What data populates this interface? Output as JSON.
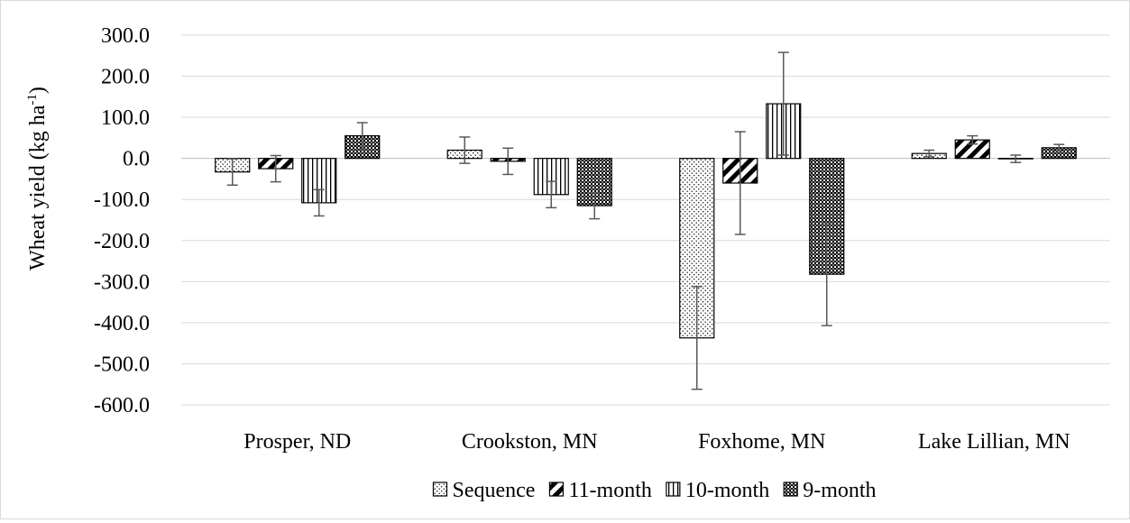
{
  "chart_data": {
    "type": "bar",
    "ylabel_main": "Wheat yield (kg ha",
    "ylabel_sup": "-1",
    "ylabel_close": ")",
    "xlabel": "",
    "ylim": [
      -600,
      300
    ],
    "yticks": [
      300,
      200,
      100,
      0,
      -100,
      -200,
      -300,
      -400,
      -500,
      -600
    ],
    "ytick_labels": [
      "300.0",
      "200.0",
      "100.0",
      "0.0",
      "-100.0",
      "-200.0",
      "-300.0",
      "-400.0",
      "-500.0",
      "-600.0"
    ],
    "grid": true,
    "legend_position": "bottom",
    "categories": [
      "Prosper, ND",
      "Crookston, MN",
      "Foxhome, MN",
      "Lake Lillian, MN"
    ],
    "series": [
      {
        "name": "Sequence",
        "pattern": "dots",
        "values": [
          -33,
          20,
          -437,
          12
        ],
        "errors": [
          32,
          32,
          125,
          8
        ]
      },
      {
        "name": "11-month",
        "pattern": "diagonal",
        "values": [
          -25,
          -7,
          -60,
          45
        ],
        "errors": [
          32,
          32,
          125,
          10
        ]
      },
      {
        "name": "10-month",
        "pattern": "vertical",
        "values": [
          -108,
          -88,
          133,
          -1
        ],
        "errors": [
          32,
          32,
          125,
          9
        ]
      },
      {
        "name": "9-month",
        "pattern": "checker",
        "values": [
          55,
          -115,
          -282,
          26
        ],
        "errors": [
          32,
          32,
          125,
          8
        ]
      }
    ],
    "colors": {
      "bar_stroke": "#000000",
      "error_bar": "#595959",
      "grid": "#d9d9d9"
    }
  }
}
